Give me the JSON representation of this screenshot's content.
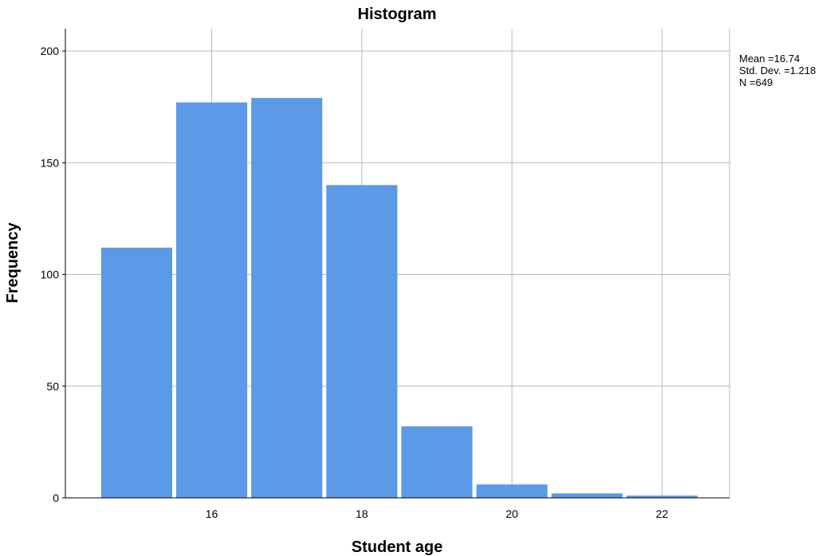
{
  "chart_data": {
    "type": "bar",
    "title": "Histogram",
    "xlabel": "Student age",
    "ylabel": "Frequency",
    "bins": [
      {
        "x0": 14.5,
        "x1": 15.5,
        "value": 112
      },
      {
        "x0": 15.5,
        "x1": 16.5,
        "value": 177
      },
      {
        "x0": 16.5,
        "x1": 17.5,
        "value": 179
      },
      {
        "x0": 17.5,
        "x1": 18.5,
        "value": 140
      },
      {
        "x0": 18.5,
        "x1": 19.5,
        "value": 32
      },
      {
        "x0": 19.5,
        "x1": 20.5,
        "value": 6
      },
      {
        "x0": 20.5,
        "x1": 21.5,
        "value": 2
      },
      {
        "x0": 21.5,
        "x1": 22.5,
        "value": 1
      }
    ],
    "xlim": [
      14.05,
      22.9
    ],
    "ylim": [
      0,
      210
    ],
    "xticks": [
      16,
      18,
      20,
      22
    ],
    "yticks": [
      0,
      50,
      100,
      150,
      200
    ],
    "grid": true,
    "bar_color": "#5b9ae6",
    "stats": {
      "mean": "Mean =16.74",
      "std": "Std. Dev. =1.218",
      "n": "N =649"
    },
    "legend_position": "top-right"
  }
}
